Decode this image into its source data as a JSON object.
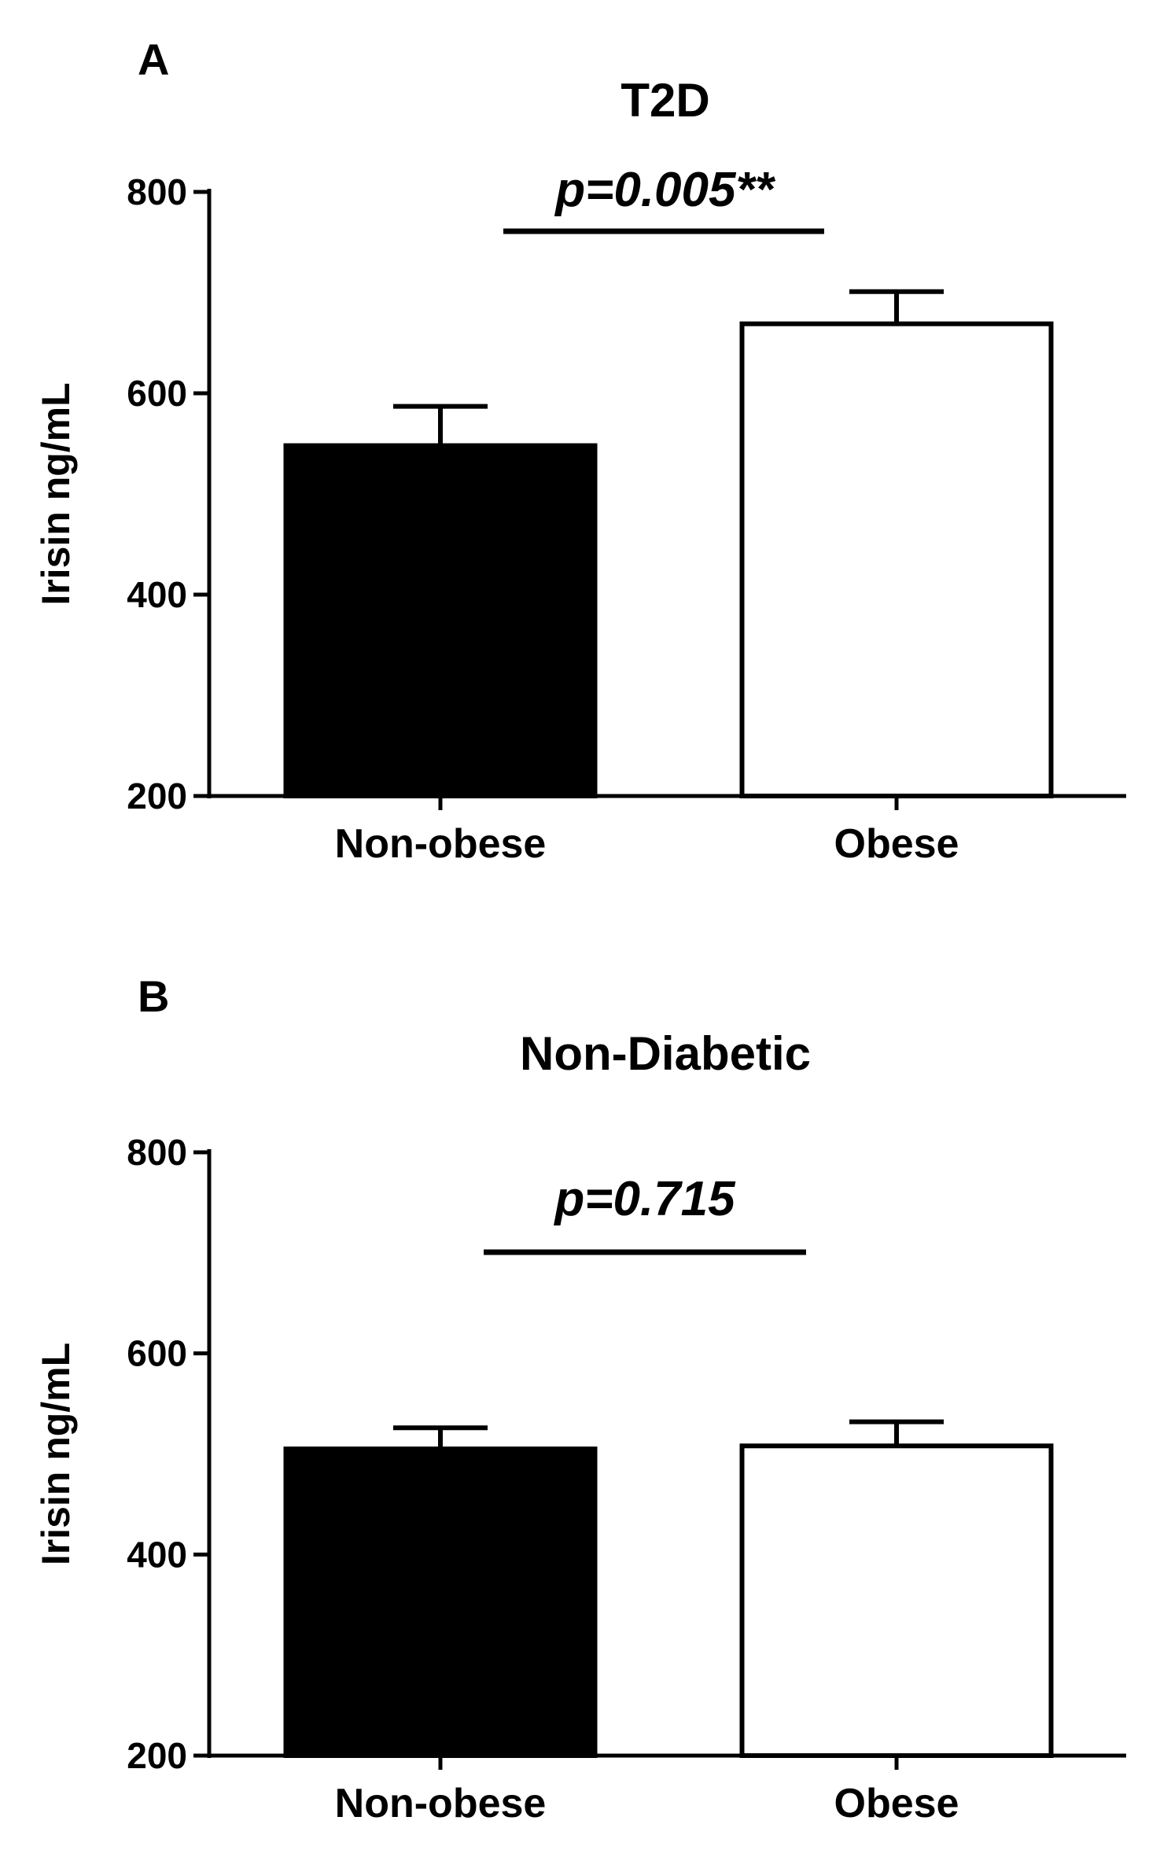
{
  "chart_data": [
    {
      "type": "bar",
      "panel": "A",
      "title": "T2D",
      "categories": [
        "Non-obese",
        "Obese"
      ],
      "values": [
        548,
        669
      ],
      "error": [
        39,
        32
      ],
      "bar_colors": [
        "#000000",
        "#ffffff"
      ],
      "ylabel": "Irisin ng/mL",
      "xlabel": "",
      "ylim": [
        200,
        800
      ],
      "yticks": [
        200,
        400,
        600,
        800
      ],
      "ytick_labels": [
        "200",
        "400",
        "600",
        "800"
      ],
      "annotation": "p=0.005**",
      "grid": false
    },
    {
      "type": "bar",
      "panel": "B",
      "title": "Non-Diabetic",
      "categories": [
        "Non-obese",
        "Obese"
      ],
      "values": [
        505,
        508
      ],
      "error": [
        21,
        24
      ],
      "bar_colors": [
        "#000000",
        "#ffffff"
      ],
      "ylabel": "Irisin ng/mL",
      "xlabel": "",
      "ylim": [
        200,
        800
      ],
      "yticks": [
        200,
        400,
        600,
        800
      ],
      "ytick_labels": [
        "200",
        "400",
        "600",
        "800"
      ],
      "annotation": "p=0.715",
      "grid": false
    }
  ]
}
